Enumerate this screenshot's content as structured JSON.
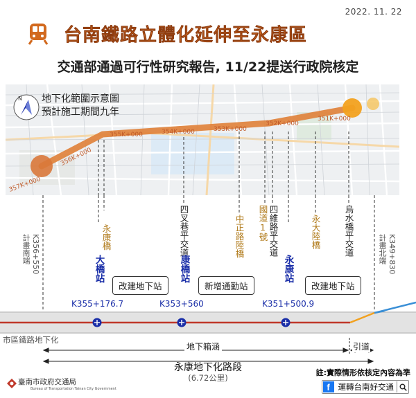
{
  "date": "2022. 11. 22",
  "title": "台南鐵路立體化延伸至永康區",
  "subtitle": "交通部通過可行性研究報告, 11/22提送行政院核定",
  "map_legend": {
    "line1": "地下化範圍示意圖",
    "line2": "預計施工期間九年"
  },
  "map_chainage_labels": [
    "357K+000",
    "356K+000",
    "355K+000",
    "354K+000",
    "353K+000",
    "352K+000",
    "351K+000"
  ],
  "colors": {
    "title": "#d2691e",
    "route": "#e0823c",
    "station": "#1a2ea8",
    "landmark": "#b07a1a",
    "track_red": "#c0392b",
    "track_orange": "#f2a11f",
    "track_blue": "#3a8fd6"
  },
  "plan_start": {
    "label": "計畫南端",
    "chainage": "K356+550"
  },
  "plan_end": {
    "label": "計畫北端",
    "chainage": "K349+830"
  },
  "landmarks": [
    "永康橋",
    "四叉巷平交道",
    "中正路陸橋",
    "國道1號",
    "四維路平交道",
    "永大陸橋",
    "烏水橋平交道"
  ],
  "stations": [
    {
      "name": "大橋站",
      "chainage": "K355+176.7",
      "note": "改建地下站"
    },
    {
      "name": "康橋站",
      "chainage": "K353+560",
      "note": "新增通勤站"
    },
    {
      "name": "永康站",
      "chainage": "K351+500.9",
      "note": "改建地下站"
    }
  ],
  "sections": {
    "existing": "市區鐵路地下化",
    "tunnel": "地下箱涵",
    "ramp": "引道",
    "name": "永康地下化路段",
    "length": "(6.72公里)"
  },
  "footer": {
    "note": "註:實際情形依核定內容為準",
    "bureau": "臺南市政府交通局",
    "bureau_en": "Bureau of Transportation Tainan City Government",
    "social": "運轉台南好交通",
    "fb_icon": "f"
  }
}
